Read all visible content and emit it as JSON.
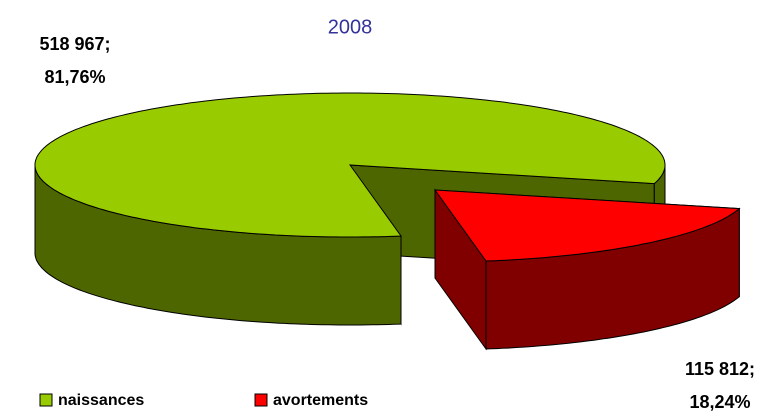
{
  "chart_data": {
    "type": "pie",
    "title": "2008",
    "categories": [
      "naissances",
      "avortements"
    ],
    "values": [
      518967,
      115812
    ],
    "value_labels": [
      [
        "518 967;",
        "81,76%"
      ],
      [
        "115 812;",
        "18,24%"
      ]
    ],
    "colors": [
      "#99cc00",
      "#ff0000"
    ],
    "side_colors": [
      "#4d6600",
      "#800000"
    ],
    "exploded": [
      false,
      true
    ],
    "legend": "bottom"
  }
}
